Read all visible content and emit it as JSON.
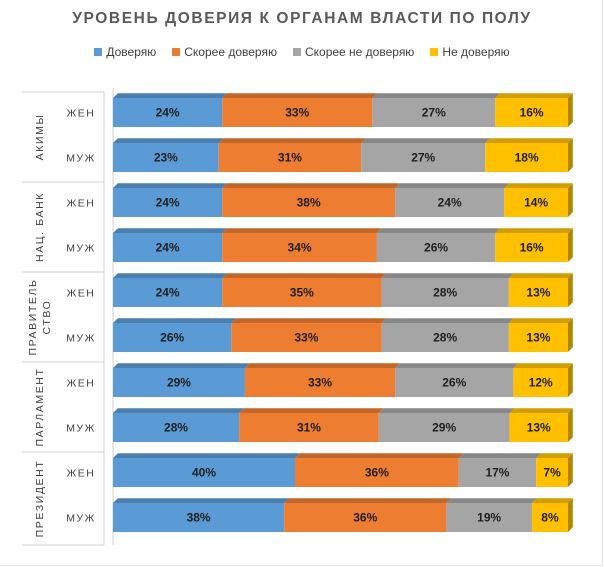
{
  "chart_data": {
    "type": "bar",
    "orientation": "horizontal",
    "stacked": true,
    "percent_stacked": true,
    "title": "УРОВЕНЬ ДОВЕРИЯ К ОРГАНАМ ВЛАСТИ ПО ПОЛУ",
    "legend_position": "top",
    "series": [
      {
        "name": "Доверяю",
        "color": "#5b9bd5"
      },
      {
        "name": "Скорее доверяю",
        "color": "#ed7d31"
      },
      {
        "name": "Скорее не доверяю",
        "color": "#a5a5a5"
      },
      {
        "name": "Не доверяю",
        "color": "#ffc000"
      }
    ],
    "groups": [
      {
        "name": "АКИМЫ",
        "name_lines": [
          "АКИМЫ"
        ],
        "rows": [
          {
            "label": "ЖЕН",
            "values": [
              24,
              33,
              27,
              16
            ]
          },
          {
            "label": "МУЖ",
            "values": [
              23,
              31,
              27,
              18
            ]
          }
        ]
      },
      {
        "name": "НАЦ. БАНК",
        "name_lines": [
          "НАЦ. БАНК"
        ],
        "rows": [
          {
            "label": "ЖЕН",
            "values": [
              24,
              38,
              24,
              14
            ]
          },
          {
            "label": "МУЖ",
            "values": [
              24,
              34,
              26,
              16
            ]
          }
        ]
      },
      {
        "name": "ПРАВИТЕЛЬСТВО",
        "name_lines": [
          "ПРАВИТЕЛЬ",
          "СТВО"
        ],
        "rows": [
          {
            "label": "ЖЕН",
            "values": [
              24,
              35,
              28,
              13
            ]
          },
          {
            "label": "МУЖ",
            "values": [
              26,
              33,
              28,
              13
            ]
          }
        ]
      },
      {
        "name": "ПАРЛАМЕНТ",
        "name_lines": [
          "ПАРЛАМЕНТ"
        ],
        "rows": [
          {
            "label": "ЖЕН",
            "values": [
              29,
              33,
              26,
              12
            ]
          },
          {
            "label": "МУЖ",
            "values": [
              28,
              31,
              29,
              13
            ]
          }
        ]
      },
      {
        "name": "ПРЕЗИДЕНТ",
        "name_lines": [
          "ПРЕЗИДЕНТ"
        ],
        "rows": [
          {
            "label": "ЖЕН",
            "values": [
              40,
              36,
              17,
              7
            ]
          },
          {
            "label": "МУЖ",
            "values": [
              38,
              36,
              19,
              8
            ]
          }
        ]
      }
    ],
    "value_suffix": "%"
  }
}
